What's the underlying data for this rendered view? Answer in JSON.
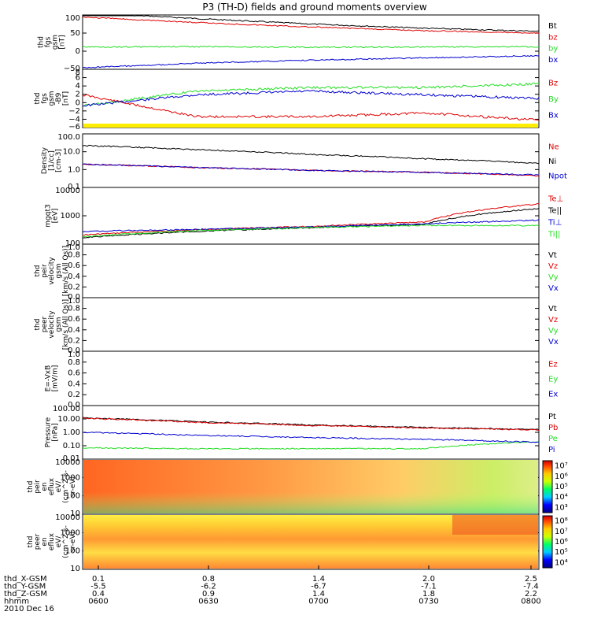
{
  "title": "P3 (TH-D) fields and ground moments overview",
  "colors": {
    "black": "#000000",
    "red": "#e00000",
    "green": "#22dd22",
    "blue": "#0000d0",
    "yellow": "#ffee00"
  },
  "panels": [
    {
      "ylabel": [
        "thd",
        "fgs",
        "gsm",
        "[nT]"
      ],
      "yticks": [
        "100",
        "50",
        "0",
        "−50"
      ],
      "legend": [
        "Bt",
        "bz",
        "by",
        "bx"
      ],
      "legend_colors": [
        "black",
        "red",
        "green",
        "blue"
      ]
    },
    {
      "ylabel": [
        "thd",
        "fgs",
        "gsm",
        "-B9",
        "[nT]"
      ],
      "yticks": [
        "8",
        "6",
        "4",
        "2",
        "0",
        "−2",
        "−4",
        "−6"
      ],
      "legend": [
        "Bz",
        "By",
        "Bx"
      ],
      "legend_colors": [
        "red",
        "green",
        "blue"
      ]
    },
    {
      "ylabel": [
        "Density",
        "[1/cc]",
        "[cm-3]"
      ],
      "yticks": [
        "100.0",
        "10.0",
        "1.0",
        "0.1"
      ],
      "legend": [
        "Ne",
        "Ni",
        "Npot"
      ],
      "legend_colors": [
        "red",
        "black",
        "blue"
      ]
    },
    {
      "ylabel": [
        "mgqt3",
        "[eV]"
      ],
      "yticks": [
        "10000",
        "1000",
        "100"
      ],
      "legend": [
        "Te⊥",
        "Te||",
        "Ti⊥",
        "Ti||"
      ],
      "legend_colors": [
        "red",
        "black",
        "blue",
        "green"
      ]
    },
    {
      "ylabel": [
        "thd",
        "peir",
        "velocity",
        "gsm",
        "[km/s (All Qs)]"
      ],
      "yticks": [
        "1.0",
        "0.8",
        "0.6",
        "0.4",
        "0.2",
        "0.0"
      ],
      "legend": [
        "Vt",
        "Vz",
        "Vy",
        "Vx"
      ],
      "legend_colors": [
        "black",
        "red",
        "green",
        "blue"
      ]
    },
    {
      "ylabel": [
        "thd",
        "peer",
        "velocity",
        "gsm",
        "[km/s (All Qs)]"
      ],
      "yticks": [
        "1.0",
        "0.8",
        "0.6",
        "0.4",
        "0.2",
        "0.0"
      ],
      "legend": [
        "Vt",
        "Vz",
        "Vy",
        "Vx"
      ],
      "legend_colors": [
        "black",
        "red",
        "green",
        "blue"
      ]
    },
    {
      "ylabel": [
        "E=-VxB",
        "[mV/m]"
      ],
      "yticks": [
        "1.0",
        "0.8",
        "0.6",
        "0.4",
        "0.2",
        "0.0"
      ],
      "legend": [
        "Ez",
        "Ey",
        "Ex"
      ],
      "legend_colors": [
        "red",
        "green",
        "blue"
      ]
    },
    {
      "ylabel": [
        "Pressure",
        "[nPa]"
      ],
      "yticks": [
        "100.00",
        "10.00",
        "1.00",
        "0.10",
        "0.01"
      ],
      "legend": [
        "Pt",
        "Pb",
        "Pe",
        "Pi"
      ],
      "legend_colors": [
        "black",
        "red",
        "green",
        "blue"
      ]
    },
    {
      "ylabel": [
        "thd",
        "peir",
        "en",
        "eflux",
        "eV/",
        "(cm^2-s-",
        "sr-eV)"
      ],
      "yticks": [
        "10000",
        "1000",
        "100",
        "10"
      ],
      "legend": [],
      "legend_colors": []
    },
    {
      "ylabel": [
        "thd",
        "peer",
        "en",
        "eflux",
        "eV/",
        "(cm^2-s-",
        "sr-eV)"
      ],
      "yticks": [
        "10000",
        "1000",
        "100",
        "10"
      ],
      "legend": [],
      "legend_colors": []
    }
  ],
  "colorbars": [
    {
      "ticks": [
        "10⁷",
        "10⁶",
        "10⁵",
        "10⁴",
        "10³"
      ]
    },
    {
      "ticks": [
        "10⁸",
        "10⁷",
        "10⁶",
        "10⁵",
        "10⁴"
      ]
    }
  ],
  "xaxis": {
    "row_labels": [
      "thd_X-GSM",
      "thd_Y-GSM",
      "thd_Z-GSM",
      "hhmm",
      "2010 Dec 16"
    ],
    "columns": [
      [
        "0.1",
        "-5.5",
        "0.4",
        "0600"
      ],
      [
        "0.8",
        "-6.2",
        "0.9",
        "0630"
      ],
      [
        "1.4",
        "-6.7",
        "1.4",
        "0700"
      ],
      [
        "2.0",
        "-7.1",
        "1.8",
        "0730"
      ],
      [
        "2.5",
        "-7.4",
        "2.2",
        "0800"
      ]
    ]
  },
  "chart_data": [
    {
      "type": "line",
      "panel": "fgs_gsm",
      "x_hhmm": [
        "0600",
        "0630",
        "0700",
        "0730",
        "0800"
      ],
      "ylim": [
        -70,
        110
      ],
      "series": [
        {
          "name": "Bt",
          "values": [
            118,
            98,
            80,
            66,
            56
          ]
        },
        {
          "name": "bz",
          "values": [
            103,
            85,
            70,
            58,
            50
          ]
        },
        {
          "name": "by",
          "values": [
            4,
            5,
            3,
            4,
            5
          ]
        },
        {
          "name": "bx",
          "values": [
            -65,
            -50,
            -40,
            -32,
            -25
          ]
        }
      ]
    },
    {
      "type": "line",
      "panel": "fgs_gsm_B9",
      "x_hhmm": [
        "0600",
        "0630",
        "0700",
        "0730",
        "0800"
      ],
      "ylim": [
        -7,
        9
      ],
      "series": [
        {
          "name": "Bz",
          "values": [
            2,
            -4,
            -4,
            -3,
            -5
          ]
        },
        {
          "name": "By",
          "values": [
            -1,
            3,
            4,
            4,
            5
          ]
        },
        {
          "name": "Bx",
          "values": [
            -1,
            2,
            3,
            2,
            1
          ]
        }
      ]
    },
    {
      "type": "line",
      "panel": "density",
      "log": true,
      "x_hhmm": [
        "0600",
        "0630",
        "0700",
        "0730",
        "0800"
      ],
      "ylim": [
        0.1,
        100
      ],
      "series": [
        {
          "name": "Ne",
          "values": [
            2,
            1.3,
            0.9,
            0.7,
            0.45
          ]
        },
        {
          "name": "Ni",
          "values": [
            22,
            13,
            7,
            4,
            2.2
          ]
        },
        {
          "name": "Npot",
          "values": [
            2,
            1.3,
            0.9,
            0.7,
            0.5
          ]
        }
      ]
    },
    {
      "type": "line",
      "panel": "temperature",
      "log": true,
      "x_hhmm": [
        "0600",
        "0630",
        "0700",
        "0730",
        "0800"
      ],
      "ylim": [
        100,
        10000
      ],
      "series": [
        {
          "name": "Te⊥",
          "values": [
            210,
            320,
            420,
            600,
            2600
          ]
        },
        {
          "name": "Te||",
          "values": [
            170,
            280,
            380,
            500,
            1800
          ]
        },
        {
          "name": "Ti⊥",
          "values": [
            280,
            330,
            400,
            520,
            700
          ]
        },
        {
          "name": "Ti||",
          "values": [
            180,
            300,
            380,
            460,
            450
          ]
        }
      ]
    },
    {
      "type": "line",
      "panel": "pressure",
      "log": true,
      "x_hhmm": [
        "0600",
        "0630",
        "0700",
        "0730",
        "0800"
      ],
      "ylim": [
        0.01,
        100
      ],
      "series": [
        {
          "name": "Pt",
          "values": [
            12,
            6,
            3.5,
            2.3,
            1.6
          ]
        },
        {
          "name": "Pb",
          "values": [
            11,
            5.5,
            3.2,
            2.1,
            1.5
          ]
        },
        {
          "name": "Pe",
          "values": [
            0.07,
            0.06,
            0.06,
            0.06,
            0.2
          ]
        },
        {
          "name": "Pi",
          "values": [
            1,
            0.6,
            0.4,
            0.3,
            0.18
          ]
        }
      ]
    },
    {
      "type": "heatmap",
      "panel": "peir_en_eflux",
      "ylim": [
        10,
        10000
      ],
      "log": true
    },
    {
      "type": "heatmap",
      "panel": "peer_en_eflux",
      "ylim": [
        10,
        10000
      ],
      "log": true
    }
  ]
}
